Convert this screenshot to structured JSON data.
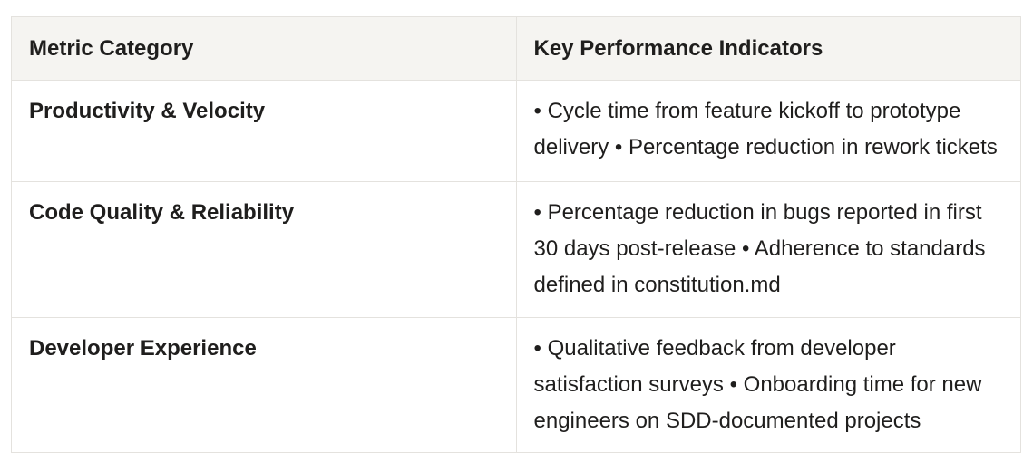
{
  "table": {
    "headers": [
      "Metric Category",
      "Key Performance Indicators"
    ],
    "rows": [
      {
        "category": "Productivity & Velocity",
        "kpis": "• Cycle time from feature kickoff to prototype delivery • Percentage reduction in rework tickets"
      },
      {
        "category": "Code Quality & Reliability",
        "kpis": "• Percentage reduction in bugs reported in first 30 days post-release • Adherence to standards defined in constitution.md"
      },
      {
        "category": "Developer Experience",
        "kpis": "• Qualitative feedback from developer satisfaction surveys • Onboarding time for new engineers on SDD-documented projects"
      }
    ]
  },
  "colors": {
    "header_background": "#f5f4f1",
    "border": "#e4e2de",
    "text": "#1f1e1d",
    "page_background": "#ffffff"
  }
}
